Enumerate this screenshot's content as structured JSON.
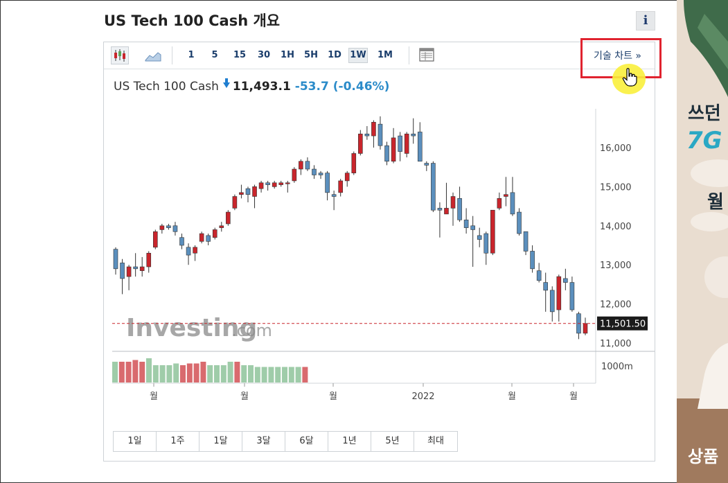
{
  "header": {
    "title": "US Tech 100 Cash 개요",
    "info_label": "i"
  },
  "toolbar": {
    "timeframes": [
      "1",
      "5",
      "15",
      "30",
      "1H",
      "5H",
      "1D",
      "1W",
      "1M"
    ],
    "active_timeframe": "1W",
    "tech_chart_label": "기술 차트 »"
  },
  "quote": {
    "name": "US Tech 100 Cash",
    "price": "11,493.1",
    "change": "-53.7",
    "change_pct": "(-0.46%)"
  },
  "watermark": {
    "brand": "Investing",
    "suffix": ".com"
  },
  "chart_data": {
    "type": "candlestick",
    "y_ticks": [
      "16,000",
      "15,000",
      "14,000",
      "13,000",
      "12,000",
      "11,000"
    ],
    "y_tick_values": [
      16000,
      15000,
      14000,
      13000,
      12000,
      11000
    ],
    "ylim": [
      10900,
      16900
    ],
    "current_price_label": "11,501.50",
    "current_price": 11501.5,
    "volume_label": "1000m",
    "x_labels": [
      "월",
      "월",
      "월",
      "2022",
      "월",
      "월"
    ],
    "candles": [
      [
        13400,
        12900,
        12750,
        13450
      ],
      [
        13050,
        12650,
        12250,
        13150
      ],
      [
        12700,
        12950,
        12350,
        13000
      ],
      [
        12950,
        12900,
        12700,
        13300
      ],
      [
        12850,
        12950,
        12700,
        13200
      ],
      [
        12950,
        13300,
        12800,
        13350
      ],
      [
        13450,
        13850,
        13400,
        13900
      ],
      [
        13900,
        14000,
        13800,
        14050
      ],
      [
        14000,
        13950,
        13900,
        14050
      ],
      [
        14000,
        13850,
        13750,
        14100
      ],
      [
        13700,
        13500,
        13400,
        13800
      ],
      [
        13450,
        13250,
        13000,
        13550
      ],
      [
        13300,
        13450,
        13100,
        13500
      ],
      [
        13600,
        13800,
        13550,
        13850
      ],
      [
        13750,
        13600,
        13500,
        13800
      ],
      [
        13700,
        13900,
        13650,
        13950
      ],
      [
        13950,
        14000,
        13850,
        14100
      ],
      [
        14050,
        14350,
        14000,
        14400
      ],
      [
        14450,
        14750,
        14400,
        14800
      ],
      [
        14800,
        14850,
        14700,
        15050
      ],
      [
        14950,
        14800,
        14600,
        15000
      ],
      [
        14750,
        15000,
        14450,
        15050
      ],
      [
        14950,
        15100,
        14850,
        15150
      ],
      [
        15100,
        15050,
        14900,
        15150
      ],
      [
        15000,
        15100,
        14950,
        15150
      ],
      [
        15050,
        15100,
        15000,
        15150
      ],
      [
        15100,
        15100,
        14850,
        15150
      ],
      [
        15150,
        15450,
        15100,
        15500
      ],
      [
        15450,
        15650,
        15300,
        15700
      ],
      [
        15650,
        15450,
        15400,
        15750
      ],
      [
        15450,
        15300,
        15200,
        15550
      ],
      [
        15350,
        15300,
        15200,
        15400
      ],
      [
        15350,
        14850,
        14650,
        15400
      ],
      [
        14800,
        14750,
        14400,
        14900
      ],
      [
        14850,
        15150,
        14750,
        15200
      ],
      [
        15150,
        15350,
        15000,
        15400
      ],
      [
        15350,
        15850,
        15300,
        15900
      ],
      [
        15850,
        16350,
        15800,
        16450
      ],
      [
        16350,
        16300,
        16200,
        16550
      ],
      [
        16300,
        16650,
        16000,
        16700
      ],
      [
        16600,
        16050,
        15950,
        16800
      ],
      [
        16050,
        15650,
        15550,
        16150
      ],
      [
        15650,
        16250,
        15600,
        16500
      ],
      [
        16300,
        15900,
        15650,
        16400
      ],
      [
        15850,
        16350,
        15750,
        16400
      ],
      [
        16350,
        16300,
        16100,
        16750
      ],
      [
        16400,
        15650,
        15650,
        16650
      ],
      [
        15600,
        15550,
        15400,
        15650
      ],
      [
        15600,
        14400,
        14350,
        15650
      ],
      [
        14450,
        14400,
        13700,
        14600
      ],
      [
        14300,
        14450,
        14300,
        15100
      ],
      [
        14450,
        14750,
        14000,
        14850
      ],
      [
        14700,
        14150,
        14100,
        15000
      ],
      [
        14150,
        13950,
        13800,
        14450
      ],
      [
        14000,
        13900,
        12950,
        14250
      ],
      [
        13750,
        13650,
        13450,
        13950
      ],
      [
        13800,
        13300,
        13000,
        13850
      ],
      [
        13300,
        14400,
        13250,
        14400
      ],
      [
        14450,
        14700,
        14400,
        14850
      ],
      [
        14750,
        14800,
        14500,
        15250
      ],
      [
        14850,
        14300,
        14250,
        15250
      ],
      [
        14350,
        13800,
        13750,
        14450
      ],
      [
        13850,
        13350,
        13250,
        13850
      ],
      [
        13350,
        12900,
        12800,
        13500
      ],
      [
        12850,
        12600,
        12550,
        13050
      ],
      [
        12550,
        12350,
        11800,
        12800
      ],
      [
        12350,
        11800,
        11550,
        12450
      ],
      [
        11850,
        12700,
        11550,
        12750
      ],
      [
        12650,
        12550,
        12350,
        12900
      ],
      [
        12550,
        11850,
        11800,
        12700
      ],
      [
        11750,
        11250,
        11100,
        11800
      ],
      [
        11250,
        11500,
        11200,
        11650
      ]
    ],
    "volume": [
      [
        0.6,
        0
      ],
      [
        0.6,
        1
      ],
      [
        0.6,
        1
      ],
      [
        0.65,
        1
      ],
      [
        0.6,
        1
      ],
      [
        0.7,
        0
      ],
      [
        0.5,
        0
      ],
      [
        0.5,
        0
      ],
      [
        0.5,
        0
      ],
      [
        0.55,
        0
      ],
      [
        0.5,
        1
      ],
      [
        0.55,
        1
      ],
      [
        0.55,
        1
      ],
      [
        0.6,
        1
      ],
      [
        0.5,
        0
      ],
      [
        0.5,
        0
      ],
      [
        0.5,
        0
      ],
      [
        0.6,
        0
      ],
      [
        0.6,
        1
      ],
      [
        0.5,
        0
      ],
      [
        0.5,
        0
      ],
      [
        0.45,
        0
      ],
      [
        0.45,
        0
      ],
      [
        0.45,
        0
      ],
      [
        0.45,
        0
      ],
      [
        0.45,
        0
      ],
      [
        0.45,
        0
      ],
      [
        0.45,
        0
      ],
      [
        0.45,
        1
      ]
    ]
  },
  "range_buttons": [
    "1일",
    "1주",
    "1달",
    "3달",
    "6달",
    "1년",
    "5년",
    "최대"
  ],
  "colors": {
    "up": "#c9252c",
    "down": "#5b8fbd",
    "accent": "#1a3d6b",
    "highlight": "#e0232f"
  }
}
